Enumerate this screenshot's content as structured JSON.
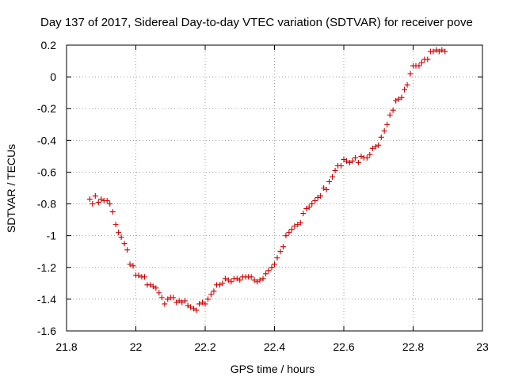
{
  "chart_data": {
    "type": "scatter",
    "title": "Day 137 of 2017, Sidereal Day-to-day VTEC variation (SDTVAR) for receiver pove",
    "xlabel": "GPS time / hours",
    "ylabel": "SDTVAR / TECUs",
    "xlim": [
      21.8,
      23.0
    ],
    "ylim": [
      -1.6,
      0.2
    ],
    "xticks": [
      21.8,
      22.0,
      22.2,
      22.4,
      22.6,
      22.8,
      23.0
    ],
    "xtick_labels": [
      "21.8",
      "22",
      "22.2",
      "22.4",
      "22.6",
      "22.8",
      "23"
    ],
    "yticks": [
      0.2,
      0,
      -0.2,
      -0.4,
      -0.6,
      -0.8,
      -1.0,
      -1.2,
      -1.4,
      -1.6
    ],
    "ytick_labels": [
      "0.2",
      "0",
      "-0.2",
      "-0.4",
      "-0.6",
      "-0.8",
      "-1",
      "-1.2",
      "-1.4",
      "-1.6"
    ],
    "grid": true,
    "marker": "+",
    "color": "#cc0000",
    "series": [
      {
        "name": "SDTVAR",
        "x": [
          21.867,
          21.875,
          21.883,
          21.892,
          21.9,
          21.908,
          21.917,
          21.925,
          21.933,
          21.942,
          21.95,
          21.958,
          21.967,
          21.975,
          21.983,
          21.992,
          22.0,
          22.008,
          22.017,
          22.025,
          22.033,
          22.042,
          22.05,
          22.058,
          22.067,
          22.075,
          22.083,
          22.092,
          22.1,
          22.108,
          22.117,
          22.125,
          22.133,
          22.142,
          22.15,
          22.158,
          22.167,
          22.175,
          22.183,
          22.192,
          22.2,
          22.208,
          22.217,
          22.225,
          22.233,
          22.242,
          22.25,
          22.258,
          22.267,
          22.275,
          22.283,
          22.292,
          22.3,
          22.308,
          22.317,
          22.325,
          22.333,
          22.342,
          22.35,
          22.358,
          22.367,
          22.375,
          22.383,
          22.392,
          22.4,
          22.408,
          22.417,
          22.425,
          22.433,
          22.442,
          22.45,
          22.458,
          22.467,
          22.475,
          22.483,
          22.492,
          22.5,
          22.508,
          22.517,
          22.525,
          22.533,
          22.542,
          22.55,
          22.558,
          22.567,
          22.575,
          22.583,
          22.592,
          22.6,
          22.608,
          22.617,
          22.625,
          22.633,
          22.642,
          22.65,
          22.658,
          22.667,
          22.675,
          22.683,
          22.692,
          22.7,
          22.708,
          22.717,
          22.725,
          22.733,
          22.742,
          22.75,
          22.758,
          22.767,
          22.775,
          22.783,
          22.792,
          22.8,
          22.808,
          22.817,
          22.825,
          22.833,
          22.842,
          22.85,
          22.858,
          22.867,
          22.875,
          22.883,
          22.892
        ],
        "y": [
          -0.77,
          -0.8,
          -0.75,
          -0.79,
          -0.77,
          -0.78,
          -0.78,
          -0.8,
          -0.85,
          -0.93,
          -0.98,
          -1.01,
          -1.05,
          -1.09,
          -1.18,
          -1.19,
          -1.25,
          -1.25,
          -1.26,
          -1.26,
          -1.31,
          -1.31,
          -1.32,
          -1.33,
          -1.36,
          -1.39,
          -1.43,
          -1.4,
          -1.39,
          -1.39,
          -1.42,
          -1.41,
          -1.42,
          -1.41,
          -1.44,
          -1.45,
          -1.46,
          -1.47,
          -1.43,
          -1.42,
          -1.43,
          -1.4,
          -1.37,
          -1.35,
          -1.31,
          -1.31,
          -1.3,
          -1.27,
          -1.28,
          -1.29,
          -1.27,
          -1.27,
          -1.28,
          -1.26,
          -1.26,
          -1.26,
          -1.26,
          -1.28,
          -1.29,
          -1.28,
          -1.27,
          -1.24,
          -1.22,
          -1.2,
          -1.18,
          -1.14,
          -1.1,
          -1.07,
          -1.0,
          -0.98,
          -0.96,
          -0.94,
          -0.93,
          -0.92,
          -0.86,
          -0.83,
          -0.82,
          -0.8,
          -0.78,
          -0.76,
          -0.75,
          -0.7,
          -0.71,
          -0.66,
          -0.63,
          -0.59,
          -0.56,
          -0.56,
          -0.52,
          -0.53,
          -0.54,
          -0.53,
          -0.51,
          -0.54,
          -0.5,
          -0.51,
          -0.51,
          -0.49,
          -0.45,
          -0.44,
          -0.43,
          -0.38,
          -0.34,
          -0.3,
          -0.24,
          -0.21,
          -0.15,
          -0.14,
          -0.13,
          -0.08,
          -0.05,
          0.02,
          0.07,
          0.07,
          0.07,
          0.09,
          0.11,
          0.11,
          0.16,
          0.16,
          0.17,
          0.16,
          0.17,
          0.16
        ]
      }
    ]
  }
}
